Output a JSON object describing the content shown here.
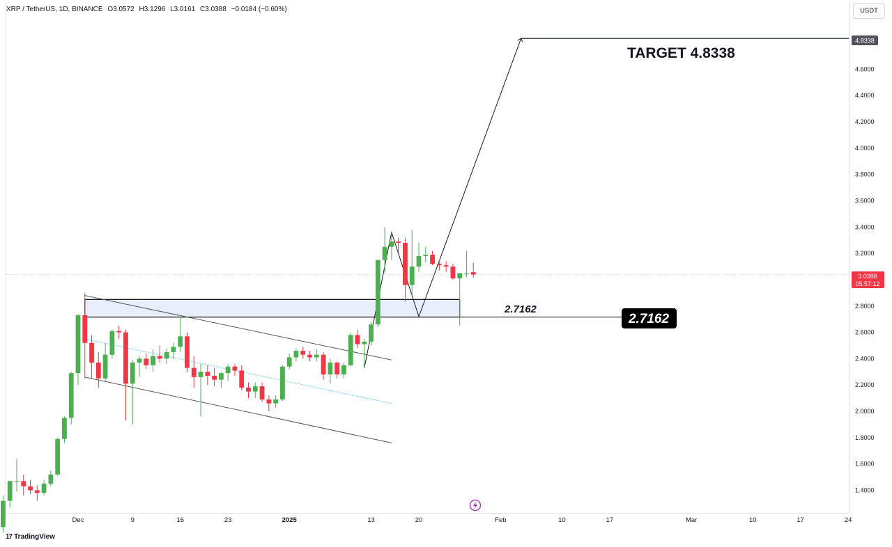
{
  "header": {
    "symbol": "XRP / TetherUS, 1D, BINANCE",
    "open": "O3.0572",
    "high": "H3.1296",
    "low": "L3.0161",
    "close": "C3.0388",
    "change": "−0.0184 (−0.60%)"
  },
  "currency_button": "USDT",
  "logo_text": "TradingView",
  "price_tag": {
    "price": "3.0388",
    "countdown": "05:57:12"
  },
  "target_tag": "4.8338",
  "annotations": {
    "target_text": "TARGET 4.8338",
    "level_text": "2.7162",
    "level_box_text": "2.7162"
  },
  "colors": {
    "up": "#4caf50",
    "down": "#f23645",
    "zone_fill": "#e8eefc",
    "text": "#131722",
    "grid": "#e0e3eb"
  },
  "chart_data": {
    "type": "candlestick",
    "interval": "1D",
    "x_ticks": [
      {
        "label": "Dec",
        "date": "2024-12-01"
      },
      {
        "label": "9",
        "date": "2024-12-09"
      },
      {
        "label": "16",
        "date": "2024-12-16"
      },
      {
        "label": "23",
        "date": "2024-12-23"
      },
      {
        "label": "2025",
        "date": "2025-01-01"
      },
      {
        "label": "13",
        "date": "2025-01-13"
      },
      {
        "label": "20",
        "date": "2025-01-20"
      },
      {
        "label": "Feb",
        "date": "2025-02-01"
      },
      {
        "label": "10",
        "date": "2025-02-10"
      },
      {
        "label": "17",
        "date": "2025-02-17"
      },
      {
        "label": "Mar",
        "date": "2025-03-01"
      },
      {
        "label": "10",
        "date": "2025-03-10"
      },
      {
        "label": "17",
        "date": "2025-03-17"
      },
      {
        "label": "24",
        "date": "2025-03-24"
      }
    ],
    "y_ticks": [
      "1.4000",
      "1.6000",
      "1.8000",
      "2.0000",
      "2.2000",
      "2.4000",
      "2.6000",
      "2.8000",
      "3.0000",
      "3.2000",
      "3.4000",
      "3.6000",
      "3.8000",
      "4.0000",
      "4.2000",
      "4.4000",
      "4.6000"
    ],
    "ylim": [
      1.25,
      5.0
    ],
    "candles": [
      {
        "date": "2024-11-20",
        "o": 1.12,
        "h": 1.36,
        "l": 1.08,
        "c": 1.32
      },
      {
        "date": "2024-11-21",
        "o": 1.32,
        "h": 1.47,
        "l": 1.27,
        "c": 1.47
      },
      {
        "date": "2024-11-22",
        "o": 1.47,
        "h": 1.64,
        "l": 1.39,
        "c": 1.47
      },
      {
        "date": "2024-11-23",
        "o": 1.47,
        "h": 1.52,
        "l": 1.36,
        "c": 1.43
      },
      {
        "date": "2024-11-24",
        "o": 1.43,
        "h": 1.48,
        "l": 1.37,
        "c": 1.4
      },
      {
        "date": "2024-11-25",
        "o": 1.4,
        "h": 1.44,
        "l": 1.32,
        "c": 1.38
      },
      {
        "date": "2024-11-26",
        "o": 1.38,
        "h": 1.48,
        "l": 1.36,
        "c": 1.45
      },
      {
        "date": "2024-11-27",
        "o": 1.45,
        "h": 1.55,
        "l": 1.43,
        "c": 1.52
      },
      {
        "date": "2024-11-28",
        "o": 1.52,
        "h": 1.8,
        "l": 1.51,
        "c": 1.79
      },
      {
        "date": "2024-11-29",
        "o": 1.79,
        "h": 1.96,
        "l": 1.76,
        "c": 1.95
      },
      {
        "date": "2024-11-30",
        "o": 1.95,
        "h": 2.3,
        "l": 1.9,
        "c": 2.29
      },
      {
        "date": "2024-12-01",
        "o": 2.29,
        "h": 2.74,
        "l": 2.2,
        "c": 2.73
      },
      {
        "date": "2024-12-02",
        "o": 2.73,
        "h": 2.9,
        "l": 2.25,
        "c": 2.52
      },
      {
        "date": "2024-12-03",
        "o": 2.52,
        "h": 2.58,
        "l": 2.25,
        "c": 2.37
      },
      {
        "date": "2024-12-04",
        "o": 2.37,
        "h": 2.45,
        "l": 2.18,
        "c": 2.25
      },
      {
        "date": "2024-12-05",
        "o": 2.25,
        "h": 2.52,
        "l": 2.22,
        "c": 2.43
      },
      {
        "date": "2024-12-06",
        "o": 2.43,
        "h": 2.62,
        "l": 2.4,
        "c": 2.61
      },
      {
        "date": "2024-12-07",
        "o": 2.61,
        "h": 2.65,
        "l": 2.55,
        "c": 2.6
      },
      {
        "date": "2024-12-08",
        "o": 2.6,
        "h": 2.62,
        "l": 1.93,
        "c": 2.21
      },
      {
        "date": "2024-12-09",
        "o": 2.21,
        "h": 2.39,
        "l": 1.9,
        "c": 2.37
      },
      {
        "date": "2024-12-10",
        "o": 2.37,
        "h": 2.42,
        "l": 2.26,
        "c": 2.4
      },
      {
        "date": "2024-12-11",
        "o": 2.4,
        "h": 2.44,
        "l": 2.32,
        "c": 2.35
      },
      {
        "date": "2024-12-12",
        "o": 2.35,
        "h": 2.47,
        "l": 2.3,
        "c": 2.42
      },
      {
        "date": "2024-12-13",
        "o": 2.42,
        "h": 2.5,
        "l": 2.37,
        "c": 2.4
      },
      {
        "date": "2024-12-14",
        "o": 2.4,
        "h": 2.48,
        "l": 2.36,
        "c": 2.45
      },
      {
        "date": "2024-12-15",
        "o": 2.45,
        "h": 2.52,
        "l": 2.4,
        "c": 2.49
      },
      {
        "date": "2024-12-16",
        "o": 2.49,
        "h": 2.72,
        "l": 2.45,
        "c": 2.57
      },
      {
        "date": "2024-12-17",
        "o": 2.57,
        "h": 2.6,
        "l": 2.3,
        "c": 2.33
      },
      {
        "date": "2024-12-18",
        "o": 2.33,
        "h": 2.42,
        "l": 2.18,
        "c": 2.26
      },
      {
        "date": "2024-12-19",
        "o": 2.26,
        "h": 2.36,
        "l": 1.96,
        "c": 2.3
      },
      {
        "date": "2024-12-20",
        "o": 2.3,
        "h": 2.35,
        "l": 2.2,
        "c": 2.27
      },
      {
        "date": "2024-12-21",
        "o": 2.27,
        "h": 2.33,
        "l": 2.19,
        "c": 2.24
      },
      {
        "date": "2024-12-22",
        "o": 2.24,
        "h": 2.3,
        "l": 2.18,
        "c": 2.29
      },
      {
        "date": "2024-12-23",
        "o": 2.29,
        "h": 2.36,
        "l": 2.23,
        "c": 2.34
      },
      {
        "date": "2024-12-24",
        "o": 2.34,
        "h": 2.36,
        "l": 2.27,
        "c": 2.31
      },
      {
        "date": "2024-12-25",
        "o": 2.31,
        "h": 2.35,
        "l": 2.16,
        "c": 2.18
      },
      {
        "date": "2024-12-26",
        "o": 2.18,
        "h": 2.22,
        "l": 2.1,
        "c": 2.15
      },
      {
        "date": "2024-12-27",
        "o": 2.15,
        "h": 2.22,
        "l": 2.1,
        "c": 2.19
      },
      {
        "date": "2024-12-28",
        "o": 2.19,
        "h": 2.22,
        "l": 2.07,
        "c": 2.09
      },
      {
        "date": "2024-12-29",
        "o": 2.09,
        "h": 2.12,
        "l": 2.0,
        "c": 2.06
      },
      {
        "date": "2024-12-30",
        "o": 2.06,
        "h": 2.12,
        "l": 2.03,
        "c": 2.09
      },
      {
        "date": "2024-12-31",
        "o": 2.09,
        "h": 2.35,
        "l": 2.08,
        "c": 2.34
      },
      {
        "date": "2025-01-01",
        "o": 2.34,
        "h": 2.44,
        "l": 2.32,
        "c": 2.41
      },
      {
        "date": "2025-01-02",
        "o": 2.41,
        "h": 2.48,
        "l": 2.38,
        "c": 2.46
      },
      {
        "date": "2025-01-03",
        "o": 2.46,
        "h": 2.49,
        "l": 2.4,
        "c": 2.43
      },
      {
        "date": "2025-01-04",
        "o": 2.43,
        "h": 2.46,
        "l": 2.38,
        "c": 2.41
      },
      {
        "date": "2025-01-05",
        "o": 2.41,
        "h": 2.47,
        "l": 2.38,
        "c": 2.43
      },
      {
        "date": "2025-01-06",
        "o": 2.43,
        "h": 2.45,
        "l": 2.24,
        "c": 2.28
      },
      {
        "date": "2025-01-07",
        "o": 2.28,
        "h": 2.4,
        "l": 2.21,
        "c": 2.37
      },
      {
        "date": "2025-01-08",
        "o": 2.37,
        "h": 2.38,
        "l": 2.25,
        "c": 2.28
      },
      {
        "date": "2025-01-09",
        "o": 2.28,
        "h": 2.37,
        "l": 2.25,
        "c": 2.35
      },
      {
        "date": "2025-01-10",
        "o": 2.35,
        "h": 2.6,
        "l": 2.34,
        "c": 2.58
      },
      {
        "date": "2025-01-11",
        "o": 2.58,
        "h": 2.62,
        "l": 2.48,
        "c": 2.51
      },
      {
        "date": "2025-01-12",
        "o": 2.51,
        "h": 2.55,
        "l": 2.33,
        "c": 2.53
      },
      {
        "date": "2025-01-13",
        "o": 2.53,
        "h": 2.68,
        "l": 2.5,
        "c": 2.66
      },
      {
        "date": "2025-01-14",
        "o": 2.66,
        "h": 3.15,
        "l": 2.64,
        "c": 3.15
      },
      {
        "date": "2025-01-15",
        "o": 3.15,
        "h": 3.4,
        "l": 3.05,
        "c": 3.25
      },
      {
        "date": "2025-01-16",
        "o": 3.25,
        "h": 3.36,
        "l": 3.15,
        "c": 3.29
      },
      {
        "date": "2025-01-17",
        "o": 3.29,
        "h": 3.32,
        "l": 3.21,
        "c": 3.28
      },
      {
        "date": "2025-01-18",
        "o": 3.28,
        "h": 3.32,
        "l": 2.83,
        "c": 2.96
      },
      {
        "date": "2025-01-19",
        "o": 2.96,
        "h": 3.38,
        "l": 2.88,
        "c": 3.1
      },
      {
        "date": "2025-01-20",
        "o": 3.1,
        "h": 3.28,
        "l": 3.06,
        "c": 3.18
      },
      {
        "date": "2025-01-21",
        "o": 3.18,
        "h": 3.25,
        "l": 3.13,
        "c": 3.19
      },
      {
        "date": "2025-01-22",
        "o": 3.19,
        "h": 3.22,
        "l": 3.11,
        "c": 3.12
      },
      {
        "date": "2025-01-23",
        "o": 3.12,
        "h": 3.15,
        "l": 3.07,
        "c": 3.11
      },
      {
        "date": "2025-01-24",
        "o": 3.11,
        "h": 3.14,
        "l": 3.06,
        "c": 3.1
      },
      {
        "date": "2025-01-25",
        "o": 3.1,
        "h": 3.12,
        "l": 3.0,
        "c": 3.01
      },
      {
        "date": "2025-01-26",
        "o": 3.01,
        "h": 3.05,
        "l": 2.65,
        "c": 3.05
      },
      {
        "date": "2025-01-27",
        "o": 3.05,
        "h": 3.22,
        "l": 3.02,
        "c": 3.05
      },
      {
        "date": "2025-01-28",
        "o": 3.0572,
        "h": 3.1296,
        "l": 3.0161,
        "c": 3.0388
      }
    ],
    "drawings": {
      "support_zone": {
        "from": "2024-12-02",
        "to": "2025-01-26",
        "top": 2.85,
        "bottom": 2.7162
      },
      "support_level": 2.7162,
      "channel_upper": [
        {
          "date": "2024-12-02",
          "price": 2.88
        },
        {
          "date": "2025-01-16",
          "price": 2.39
        }
      ],
      "channel_mid": [
        {
          "date": "2024-12-02",
          "price": 2.55
        },
        {
          "date": "2025-01-16",
          "price": 2.06
        }
      ],
      "channel_lower": [
        {
          "date": "2024-12-02",
          "price": 2.26
        },
        {
          "date": "2025-01-16",
          "price": 1.76
        }
      ],
      "projection_path": [
        {
          "date": "2025-01-12",
          "price": 2.33
        },
        {
          "date": "2025-01-16",
          "price": 3.36
        },
        {
          "date": "2025-01-20",
          "price": 2.72
        },
        {
          "date": "2025-02-04",
          "price": 4.8338
        }
      ],
      "target_level": 4.8338
    }
  }
}
